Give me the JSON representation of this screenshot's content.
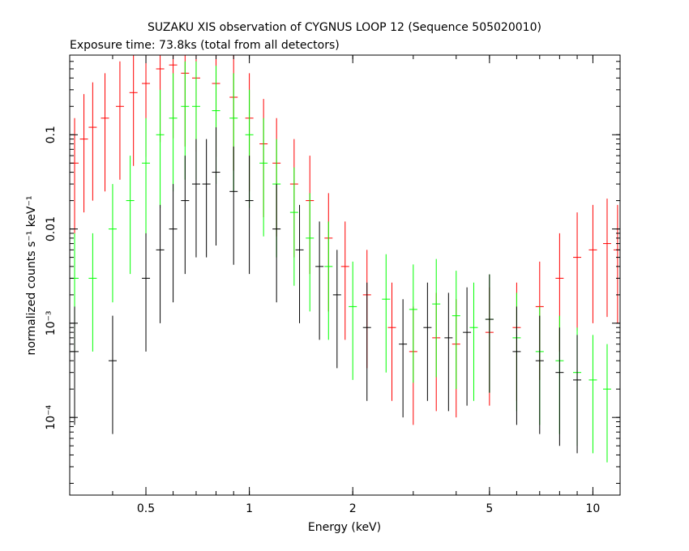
{
  "chart_data": {
    "type": "scatter",
    "title": "SUZAKU XIS observation of CYGNUS LOOP 12 (Sequence 505020010)",
    "subtitle": "Exposure time: 73.8ks (total from all detectors)",
    "xlabel": "Energy (keV)",
    "ylabel": "normalized counts s⁻¹ keV⁻¹",
    "xscale": "log",
    "yscale": "log",
    "xlim": [
      0.3,
      12
    ],
    "ylim": [
      1.5e-05,
      0.7
    ],
    "x_ticks": [
      {
        "value": 0.5,
        "label": "0.5"
      },
      {
        "value": 1,
        "label": "1"
      },
      {
        "value": 2,
        "label": "2"
      },
      {
        "value": 5,
        "label": "5"
      },
      {
        "value": 10,
        "label": "10"
      }
    ],
    "y_ticks": [
      {
        "value": 0.1,
        "label": "0.1"
      },
      {
        "value": 0.01,
        "label": "0.01"
      },
      {
        "value": 0.001,
        "label": "10⁻³"
      },
      {
        "value": 0.0001,
        "label": "10⁻⁴"
      }
    ],
    "grid": false,
    "legend": "none",
    "series": [
      {
        "color": "#ff0000",
        "points": [
          [
            0.31,
            0.05
          ],
          [
            0.33,
            0.09
          ],
          [
            0.35,
            0.12
          ],
          [
            0.38,
            0.15
          ],
          [
            0.42,
            0.2
          ],
          [
            0.46,
            0.28
          ],
          [
            0.5,
            0.35
          ],
          [
            0.55,
            0.5
          ],
          [
            0.6,
            0.55
          ],
          [
            0.65,
            0.45
          ],
          [
            0.7,
            0.4
          ],
          [
            0.8,
            0.35
          ],
          [
            0.9,
            0.25
          ],
          [
            1.0,
            0.15
          ],
          [
            1.1,
            0.08
          ],
          [
            1.2,
            0.05
          ],
          [
            1.35,
            0.03
          ],
          [
            1.5,
            0.02
          ],
          [
            1.7,
            0.008
          ],
          [
            1.9,
            0.004
          ],
          [
            2.2,
            0.002
          ],
          [
            2.6,
            0.0009
          ],
          [
            3.0,
            0.0005
          ],
          [
            3.5,
            0.0007
          ],
          [
            4.0,
            0.0006
          ],
          [
            5.0,
            0.0008
          ],
          [
            6.0,
            0.0009
          ],
          [
            7.0,
            0.0015
          ],
          [
            8.0,
            0.003
          ],
          [
            9.0,
            0.005
          ],
          [
            10.0,
            0.006
          ],
          [
            11.0,
            0.007
          ],
          [
            11.8,
            0.006
          ]
        ]
      },
      {
        "color": "#00ff00",
        "points": [
          [
            0.31,
            0.003
          ],
          [
            0.35,
            0.003
          ],
          [
            0.4,
            0.01
          ],
          [
            0.45,
            0.02
          ],
          [
            0.5,
            0.05
          ],
          [
            0.55,
            0.1
          ],
          [
            0.6,
            0.15
          ],
          [
            0.65,
            0.2
          ],
          [
            0.7,
            0.2
          ],
          [
            0.8,
            0.18
          ],
          [
            0.9,
            0.15
          ],
          [
            1.0,
            0.1
          ],
          [
            1.1,
            0.05
          ],
          [
            1.2,
            0.03
          ],
          [
            1.35,
            0.015
          ],
          [
            1.5,
            0.008
          ],
          [
            1.7,
            0.004
          ],
          [
            2.0,
            0.0015
          ],
          [
            2.5,
            0.0018
          ],
          [
            3.0,
            0.0014
          ],
          [
            3.5,
            0.0016
          ],
          [
            4.0,
            0.0012
          ],
          [
            4.5,
            0.0009
          ],
          [
            5.0,
            0.0011
          ],
          [
            6.0,
            0.0007
          ],
          [
            7.0,
            0.0005
          ],
          [
            8.0,
            0.0004
          ],
          [
            9.0,
            0.0003
          ],
          [
            10.0,
            0.00025
          ],
          [
            11.0,
            0.0002
          ]
        ]
      },
      {
        "color": "#000000",
        "points": [
          [
            0.31,
            0.0005
          ],
          [
            0.4,
            0.0004
          ],
          [
            0.5,
            0.003
          ],
          [
            0.55,
            0.006
          ],
          [
            0.6,
            0.01
          ],
          [
            0.65,
            0.02
          ],
          [
            0.7,
            0.03
          ],
          [
            0.75,
            0.03
          ],
          [
            0.8,
            0.04
          ],
          [
            0.9,
            0.025
          ],
          [
            1.0,
            0.02
          ],
          [
            1.2,
            0.01
          ],
          [
            1.4,
            0.006
          ],
          [
            1.6,
            0.004
          ],
          [
            1.8,
            0.002
          ],
          [
            2.2,
            0.0009
          ],
          [
            2.8,
            0.0006
          ],
          [
            3.3,
            0.0009
          ],
          [
            3.8,
            0.0007
          ],
          [
            4.3,
            0.0008
          ],
          [
            5.0,
            0.0011
          ],
          [
            6.0,
            0.0005
          ],
          [
            7.0,
            0.0004
          ],
          [
            8.0,
            0.0003
          ],
          [
            9.0,
            0.00025
          ]
        ]
      }
    ]
  }
}
